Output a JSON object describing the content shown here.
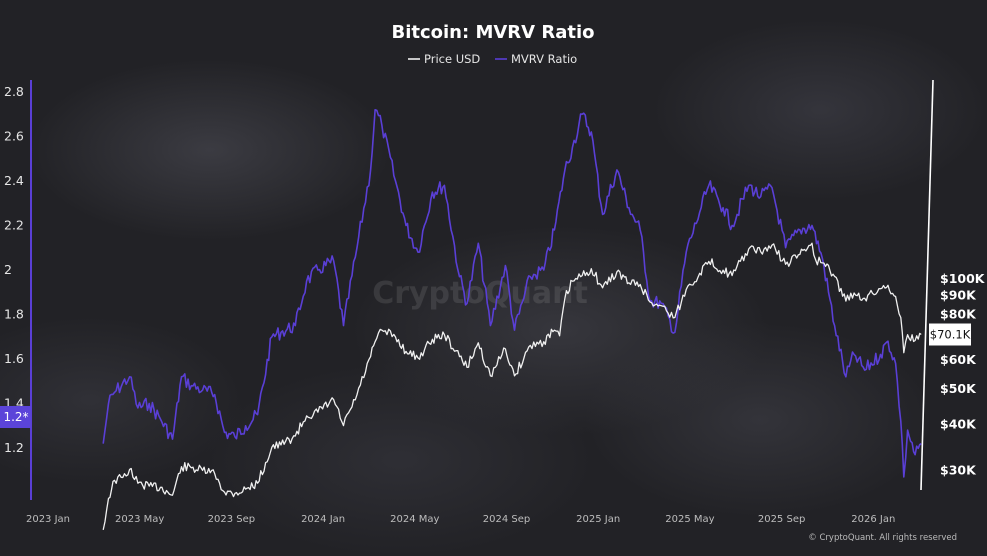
{
  "chart_data": {
    "type": "line",
    "title": "Bitcoin: MVRV Ratio",
    "legend": {
      "placement": "top-center",
      "entries": [
        "Price USD",
        "MVRV Ratio"
      ]
    },
    "x_ticks": [
      "2023 Jan",
      "2023 May",
      "2023 Sep",
      "2024 Jan",
      "2024 May",
      "2024 Sep",
      "2025 Jan",
      "2025 May",
      "2025 Sep",
      "2026 Jan"
    ],
    "left_axis": {
      "ticks": [
        1.2,
        1.4,
        1.6,
        1.8,
        2,
        2.2,
        2.4,
        2.6,
        2.8
      ],
      "range": [
        1.05,
        2.88
      ],
      "current_marker": "1.2*"
    },
    "right_axis": {
      "scale": "log",
      "ticks": [
        "$30K",
        "$40K",
        "$50K",
        "$60K",
        "$80K",
        "$90K",
        "$100K"
      ],
      "tick_values": [
        30000,
        40000,
        50000,
        60000,
        80000,
        90000,
        100000
      ],
      "current_marker": "$70.1K",
      "current_value": 70100
    },
    "colors": {
      "price": "#f0f0f0",
      "mvrv": "#5a3fd6",
      "mvrv_marker": "#5b44d9"
    },
    "series": [
      {
        "name": "Price USD",
        "axis": "right",
        "x": [
          "2023-03-10",
          "2023-03-17",
          "2023-03-25",
          "2023-04-05",
          "2023-04-14",
          "2023-04-25",
          "2023-05-10",
          "2023-05-25",
          "2023-06-10",
          "2023-06-22",
          "2023-07-05",
          "2023-07-20",
          "2023-08-05",
          "2023-08-18",
          "2023-09-01",
          "2023-09-15",
          "2023-10-01",
          "2023-10-20",
          "2023-11-01",
          "2023-11-20",
          "2023-12-05",
          "2023-12-20",
          "2024-01-10",
          "2024-01-23",
          "2024-02-10",
          "2024-02-28",
          "2024-03-05",
          "2024-03-14",
          "2024-04-01",
          "2024-04-15",
          "2024-05-01",
          "2024-05-20",
          "2024-06-05",
          "2024-06-25",
          "2024-07-05",
          "2024-07-20",
          "2024-08-05",
          "2024-08-25",
          "2024-09-06",
          "2024-09-27",
          "2024-10-15",
          "2024-10-29",
          "2024-11-05",
          "2024-11-12",
          "2024-11-22",
          "2024-12-05",
          "2024-12-17",
          "2025-01-01",
          "2025-01-20",
          "2025-02-05",
          "2025-02-20",
          "2025-03-05",
          "2025-03-20",
          "2025-04-07",
          "2025-04-22",
          "2025-05-10",
          "2025-05-22",
          "2025-06-10",
          "2025-06-22",
          "2025-07-14",
          "2025-07-30",
          "2025-08-14",
          "2025-09-01",
          "2025-09-20",
          "2025-10-06",
          "2025-10-11",
          "2025-10-20",
          "2025-11-05",
          "2025-11-20",
          "2025-12-01",
          "2025-12-15",
          "2026-01-05",
          "2026-01-15",
          "2026-01-25",
          "2026-02-01",
          "2026-02-05",
          "2026-02-10",
          "2026-02-20",
          "2026-02-28"
        ],
        "values": [
          20500,
          25000,
          28000,
          28500,
          30000,
          27500,
          27000,
          26800,
          25500,
          30500,
          30300,
          29800,
          29200,
          26000,
          25800,
          26500,
          27500,
          34500,
          35000,
          37000,
          42000,
          43000,
          46500,
          39500,
          48000,
          61000,
          67000,
          72000,
          69000,
          63000,
          60500,
          68000,
          70000,
          61000,
          57000,
          66500,
          54000,
          64000,
          54000,
          65500,
          67000,
          72000,
          69500,
          88000,
          98000,
          101500,
          106000,
          94000,
          104000,
          97000,
          96000,
          86000,
          84000,
          78000,
          93000,
          103000,
          111000,
          105000,
          101500,
          120000,
          118000,
          123000,
          109000,
          116000,
          124500,
          112000,
          110000,
          101000,
          86500,
          91000,
          88000,
          93500,
          95500,
          89000,
          78000,
          62500,
          70000,
          67500,
          70100
        ]
      },
      {
        "name": "MVRV Ratio",
        "axis": "left",
        "x": [
          "2023-03-10",
          "2023-03-17",
          "2023-03-25",
          "2023-04-14",
          "2023-04-25",
          "2023-05-10",
          "2023-05-25",
          "2023-06-10",
          "2023-06-22",
          "2023-07-05",
          "2023-07-20",
          "2023-08-05",
          "2023-08-18",
          "2023-09-01",
          "2023-09-15",
          "2023-10-01",
          "2023-10-20",
          "2023-11-01",
          "2023-11-20",
          "2023-12-05",
          "2023-12-20",
          "2024-01-10",
          "2024-01-23",
          "2024-02-10",
          "2024-02-28",
          "2024-03-05",
          "2024-03-14",
          "2024-04-01",
          "2024-04-15",
          "2024-05-01",
          "2024-05-20",
          "2024-06-05",
          "2024-06-25",
          "2024-07-05",
          "2024-07-20",
          "2024-08-05",
          "2024-08-25",
          "2024-09-06",
          "2024-09-27",
          "2024-10-15",
          "2024-10-29",
          "2024-11-12",
          "2024-11-22",
          "2024-12-05",
          "2024-12-17",
          "2025-01-01",
          "2025-01-20",
          "2025-02-05",
          "2025-02-20",
          "2025-03-05",
          "2025-03-20",
          "2025-04-07",
          "2025-04-22",
          "2025-05-10",
          "2025-05-22",
          "2025-06-10",
          "2025-06-22",
          "2025-07-14",
          "2025-07-30",
          "2025-08-14",
          "2025-09-01",
          "2025-09-20",
          "2025-10-06",
          "2025-10-20",
          "2025-11-05",
          "2025-11-20",
          "2025-12-01",
          "2025-12-15",
          "2026-01-05",
          "2026-01-15",
          "2026-01-25",
          "2026-02-01",
          "2026-02-05",
          "2026-02-10",
          "2026-02-20",
          "2026-02-28"
        ],
        "values": [
          1.22,
          1.4,
          1.45,
          1.52,
          1.38,
          1.4,
          1.33,
          1.24,
          1.52,
          1.48,
          1.46,
          1.44,
          1.27,
          1.25,
          1.3,
          1.35,
          1.7,
          1.72,
          1.75,
          1.95,
          2.0,
          2.04,
          1.75,
          2.1,
          2.45,
          2.72,
          2.65,
          2.4,
          2.2,
          2.08,
          2.35,
          2.38,
          1.97,
          1.85,
          2.12,
          1.75,
          2.02,
          1.73,
          1.97,
          2.0,
          2.18,
          2.45,
          2.55,
          2.7,
          2.62,
          2.25,
          2.45,
          2.28,
          2.18,
          1.86,
          1.85,
          1.72,
          2.08,
          2.26,
          2.38,
          2.28,
          2.2,
          2.38,
          2.33,
          2.37,
          2.1,
          2.18,
          2.2,
          2.05,
          1.75,
          1.52,
          1.62,
          1.55,
          1.62,
          1.68,
          1.58,
          1.32,
          1.07,
          1.28,
          1.17,
          1.22
        ]
      }
    ],
    "watermark": "CryptoQuant",
    "credit": "© CryptoQuant. All rights reserved"
  }
}
